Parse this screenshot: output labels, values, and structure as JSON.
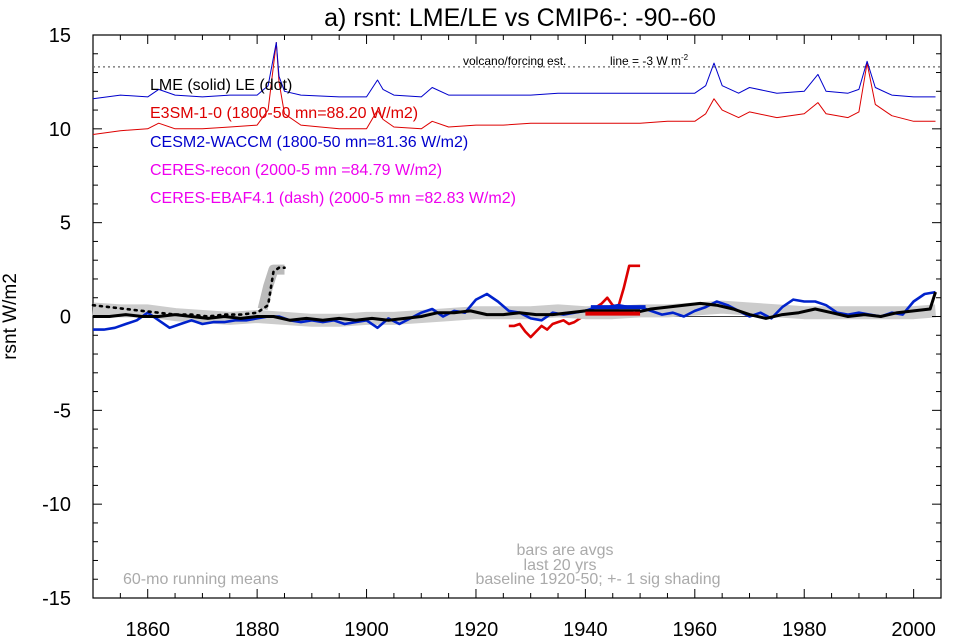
{
  "chart_data": {
    "type": "line",
    "title": "a) rsnt: LME/LE vs CMIP6-: -90--60",
    "ylabel": "rsnt W/m2",
    "xlabel": "",
    "xlim": [
      1850,
      2005
    ],
    "ylim": [
      -15,
      15
    ],
    "x_ticks": [
      1860,
      1880,
      1900,
      1920,
      1940,
      1960,
      1980,
      2000
    ],
    "y_ticks": [
      -15,
      -10,
      -5,
      0,
      5,
      10,
      15
    ],
    "grid": false,
    "legend": {
      "placement": "top-left",
      "header": "LME (solid)   LE (dot)",
      "entries": [
        {
          "label": "E3SM-1-0 (1800-50 mn=88.20 W/m2)",
          "color": "#dd0000"
        },
        {
          "label": "CESM2-WACCM (1800-50 mn=81.36 W/m2)",
          "color": "#0000cc"
        },
        {
          "label": "CERES-recon (2000-5 mn =84.79 W/m2)",
          "color": "#ee00ee"
        },
        {
          "label": "CERES-EBAF4.1 (dash) (2000-5 mn =82.83 W/m2)",
          "color": "#ee00ee"
        }
      ]
    },
    "annotations": {
      "volcano": "volcano/forcing est.",
      "line_note": "line = -3 W m",
      "line_note_sup": "-2",
      "bars_note": "bars are avgs",
      "last_note": "last 20 yrs",
      "baseline_note": "baseline 1920-50; +- 1 sig shading",
      "running_note": "60-mo running means"
    },
    "reference_line_y": 13.3,
    "zero_line_y": 0,
    "series": [
      {
        "name": "volcano forcing (E3SM)",
        "color": "#dd0000",
        "width": 1,
        "x": [
          1850,
          1855,
          1860,
          1862,
          1865,
          1870,
          1875,
          1880,
          1882,
          1883.5,
          1884,
          1885,
          1888,
          1895,
          1900,
          1902,
          1903,
          1905,
          1910,
          1912,
          1915,
          1920,
          1925,
          1930,
          1935,
          1940,
          1945,
          1950,
          1955,
          1960,
          1962,
          1963.5,
          1965,
          1968,
          1970,
          1975,
          1980,
          1982.5,
          1984,
          1988,
          1990,
          1991.5,
          1993,
          1996,
          2000,
          2004
        ],
        "y": [
          9.7,
          9.9,
          10.0,
          10.3,
          10.0,
          10.0,
          10.1,
          10.2,
          11.0,
          14.6,
          12.5,
          10.8,
          10.2,
          10.0,
          10.0,
          11.0,
          10.5,
          10.1,
          10.0,
          10.4,
          10.1,
          10.2,
          10.2,
          10.3,
          10.3,
          10.3,
          10.3,
          10.3,
          10.4,
          10.4,
          10.8,
          11.6,
          11.0,
          10.6,
          10.9,
          10.6,
          10.8,
          11.4,
          10.8,
          10.6,
          10.9,
          13.5,
          11.3,
          10.7,
          10.4,
          10.4
        ]
      },
      {
        "name": "volcano forcing (CESM2)",
        "color": "#0000cc",
        "width": 1,
        "x": [
          1850,
          1855,
          1860,
          1862,
          1865,
          1870,
          1875,
          1880,
          1882,
          1883.5,
          1884,
          1885,
          1888,
          1895,
          1900,
          1902,
          1903,
          1905,
          1910,
          1912,
          1915,
          1920,
          1925,
          1930,
          1935,
          1940,
          1945,
          1950,
          1955,
          1960,
          1962,
          1963.5,
          1965,
          1968,
          1970,
          1975,
          1980,
          1982.5,
          1984,
          1988,
          1990,
          1991.5,
          1993,
          1996,
          2000,
          2004
        ],
        "y": [
          11.6,
          11.8,
          11.7,
          12.1,
          11.8,
          11.7,
          11.8,
          11.8,
          12.3,
          14.6,
          12.8,
          12.0,
          11.8,
          11.7,
          11.7,
          12.6,
          12.1,
          11.8,
          11.7,
          12.2,
          11.8,
          11.8,
          11.8,
          11.8,
          11.9,
          11.9,
          11.9,
          11.9,
          11.9,
          11.9,
          12.3,
          13.5,
          12.3,
          11.9,
          12.2,
          11.9,
          12.0,
          12.9,
          12.0,
          11.9,
          12.1,
          13.6,
          12.2,
          11.8,
          11.7,
          11.7
        ]
      },
      {
        "name": "LME E3SM (solid)",
        "color": "#dd0000",
        "width": 2.6,
        "x": [
          1926,
          1927,
          1928,
          1929,
          1930,
          1931,
          1932,
          1933,
          1934,
          1935,
          1936,
          1937,
          1938,
          1939,
          1940,
          1941,
          1942,
          1943,
          1944,
          1945,
          1946,
          1947,
          1948,
          1949,
          1950
        ],
        "y": [
          -0.5,
          -0.5,
          -0.4,
          -0.8,
          -1.1,
          -0.8,
          -0.5,
          -0.7,
          -0.4,
          -0.3,
          -0.2,
          -0.4,
          -0.3,
          -0.1,
          0.1,
          0.3,
          0.5,
          0.7,
          1.0,
          0.6,
          0.5,
          1.5,
          2.7,
          2.7,
          2.7
        ]
      },
      {
        "name": "LE shading band",
        "color": "#cccccc",
        "width": 13,
        "x": [
          1850,
          1855,
          1860,
          1865,
          1870,
          1875,
          1880,
          1885,
          1890,
          1895,
          1900,
          1905,
          1910,
          1915,
          1920,
          1925,
          1930,
          1935,
          1940,
          1945,
          1950,
          1955,
          1960,
          1965,
          1970,
          1975,
          1980,
          1985,
          1990,
          1995,
          2000,
          2004
        ],
        "y": [
          0.4,
          0.3,
          0.3,
          0.1,
          0.0,
          -0.1,
          0.0,
          -0.1,
          -0.2,
          -0.2,
          -0.1,
          -0.1,
          0.0,
          0.1,
          0.2,
          0.2,
          0.2,
          0.3,
          0.2,
          0.2,
          0.3,
          0.3,
          0.4,
          0.5,
          0.4,
          0.3,
          0.2,
          0.2,
          0.2,
          0.2,
          0.2,
          0.3
        ]
      },
      {
        "name": "LE shading early",
        "color": "#bbbbbb",
        "width": 10,
        "x": [
          1881,
          1882,
          1883,
          1884,
          1885
        ],
        "y": [
          0.4,
          1.6,
          2.5,
          2.5,
          2.5
        ]
      },
      {
        "name": "CESM2-WACCM LME (solid)",
        "color": "#0022cc",
        "width": 2.6,
        "x": [
          1850,
          1852,
          1854,
          1856,
          1858,
          1860,
          1862,
          1864,
          1866,
          1868,
          1870,
          1872,
          1874,
          1876,
          1878,
          1880,
          1882,
          1884,
          1886,
          1888,
          1890,
          1892,
          1894,
          1896,
          1898,
          1900,
          1902,
          1904,
          1906,
          1908,
          1910,
          1912,
          1914,
          1916,
          1918,
          1920,
          1922,
          1924,
          1926,
          1928,
          1930,
          1932,
          1934,
          1936,
          1938,
          1940,
          1942,
          1944,
          1946,
          1948,
          1950,
          1952,
          1954,
          1956,
          1958,
          1960,
          1962,
          1964,
          1966,
          1968,
          1970,
          1972,
          1974,
          1976,
          1978,
          1980,
          1982,
          1984,
          1986,
          1988,
          1990,
          1992,
          1994,
          1996,
          1998,
          2000,
          2002,
          2004
        ],
        "y": [
          -0.7,
          -0.7,
          -0.6,
          -0.4,
          -0.2,
          0.2,
          -0.2,
          -0.6,
          -0.4,
          -0.2,
          -0.4,
          -0.3,
          -0.3,
          -0.2,
          -0.2,
          -0.1,
          0.0,
          0.0,
          -0.2,
          -0.3,
          -0.2,
          -0.3,
          -0.2,
          -0.4,
          -0.3,
          -0.2,
          -0.6,
          -0.1,
          -0.4,
          -0.1,
          0.2,
          0.4,
          0.0,
          0.3,
          0.2,
          0.9,
          1.2,
          0.8,
          0.3,
          0.2,
          -0.1,
          -0.2,
          0.2,
          0.1,
          0.2,
          0.3,
          0.5,
          0.5,
          0.6,
          0.5,
          0.5,
          0.3,
          0.1,
          0.2,
          0.0,
          0.3,
          0.5,
          0.8,
          0.6,
          0.3,
          0.0,
          0.2,
          -0.1,
          0.5,
          0.9,
          0.8,
          0.8,
          0.6,
          0.2,
          0.1,
          0.2,
          0.1,
          0.0,
          0.2,
          0.1,
          0.8,
          1.2,
          1.3
        ]
      },
      {
        "name": "LE dotted",
        "color": "#000000",
        "width": 2.6,
        "dash": "2,5",
        "x": [
          1850,
          1853,
          1856,
          1859,
          1862,
          1865,
          1868,
          1871,
          1874,
          1877,
          1880,
          1882,
          1883,
          1884,
          1885
        ],
        "y": [
          0.6,
          0.5,
          0.4,
          0.3,
          0.2,
          0.1,
          0.1,
          0.0,
          0.1,
          0.1,
          0.2,
          0.6,
          2.4,
          2.6,
          2.6
        ]
      },
      {
        "name": "LME solid (black)",
        "color": "#000000",
        "width": 3,
        "x": [
          1850,
          1853,
          1856,
          1859,
          1862,
          1865,
          1868,
          1871,
          1874,
          1877,
          1880,
          1883,
          1886,
          1889,
          1892,
          1895,
          1898,
          1901,
          1904,
          1907,
          1910,
          1913,
          1916,
          1919,
          1922,
          1925,
          1928,
          1931,
          1934,
          1937,
          1940,
          1943,
          1946,
          1949,
          1952,
          1955,
          1958,
          1961,
          1964,
          1967,
          1970,
          1973,
          1976,
          1979,
          1982,
          1985,
          1988,
          1991,
          1994,
          1997,
          2000,
          2003,
          2004
        ],
        "y": [
          0.0,
          0.0,
          0.1,
          0.0,
          0.0,
          0.1,
          0.0,
          -0.1,
          0.0,
          -0.1,
          0.0,
          0.0,
          -0.2,
          -0.1,
          -0.2,
          -0.1,
          -0.2,
          -0.1,
          -0.2,
          -0.1,
          0.0,
          0.2,
          0.2,
          0.3,
          0.1,
          0.1,
          0.2,
          0.1,
          0.1,
          0.2,
          0.3,
          0.3,
          0.3,
          0.2,
          0.4,
          0.5,
          0.6,
          0.7,
          0.6,
          0.4,
          0.1,
          -0.1,
          0.1,
          0.2,
          0.4,
          0.2,
          0.0,
          0.1,
          0.0,
          0.2,
          0.3,
          0.4,
          1.3
        ]
      }
    ],
    "bars": [
      {
        "name": "E3SM last-20-yr bar",
        "color": "#dd0000",
        "x0": 1940,
        "x1": 1950,
        "y": 0.15,
        "thickness": 4
      },
      {
        "name": "CESM2 last-20-yr bar",
        "color": "#0022cc",
        "x0": 1941,
        "x1": 1951,
        "y": 0.5,
        "thickness": 4
      },
      {
        "name": "LME last-20-yr bar",
        "color": "#000000",
        "x0": 1940,
        "x1": 1950,
        "y": 0.33,
        "thickness": 2
      }
    ]
  }
}
